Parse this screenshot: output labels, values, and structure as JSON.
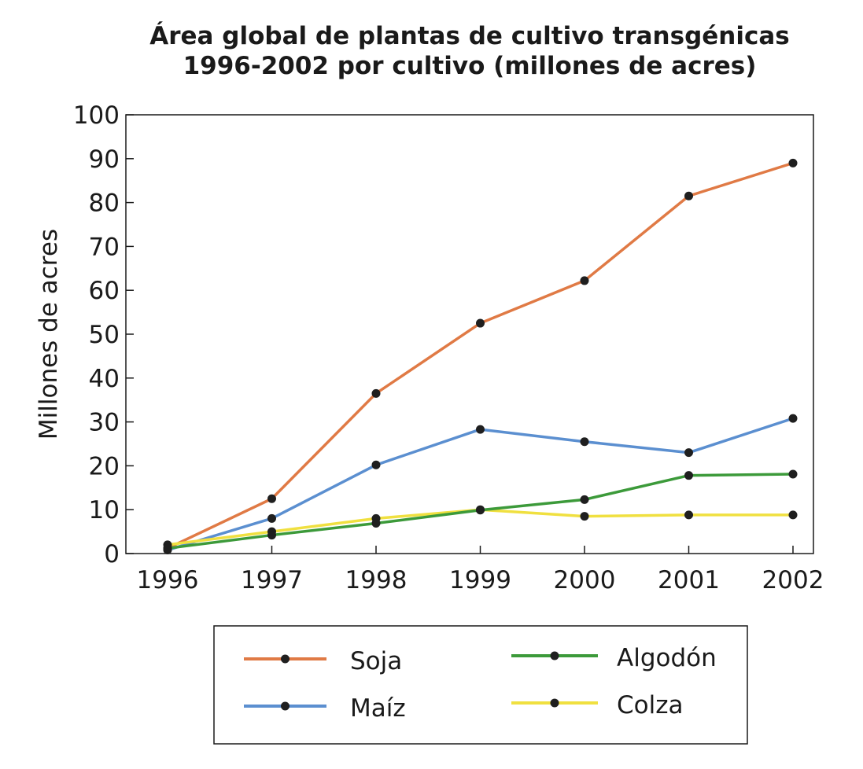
{
  "chart_data": {
    "type": "line",
    "title": "Área global de plantas de cultivo transgénicas",
    "subtitle": "1996-2002 por cultivo (millones de acres)",
    "xlabel": "",
    "ylabel": "Millones de acres",
    "x": [
      "1996",
      "1997",
      "1998",
      "1999",
      "2000",
      "2001",
      "2002"
    ],
    "ylim": [
      0,
      100
    ],
    "yticks": [
      0,
      10,
      20,
      30,
      40,
      50,
      60,
      70,
      80,
      90,
      100
    ],
    "grid": false,
    "legend_position": "bottom",
    "series": [
      {
        "name": "Soja",
        "color": "#e07a45",
        "values": [
          1.2,
          12.5,
          36.5,
          52.5,
          62.2,
          81.5,
          89.0
        ]
      },
      {
        "name": "Maíz",
        "color": "#5b8fd0",
        "values": [
          0.8,
          8.0,
          20.2,
          28.3,
          25.5,
          23.0,
          30.8
        ]
      },
      {
        "name": "Algodón",
        "color": "#3c9a3a",
        "values": [
          1.2,
          4.2,
          6.9,
          9.9,
          12.3,
          17.8,
          18.1
        ]
      },
      {
        "name": "Colza",
        "color": "#f0e040",
        "values": [
          2.0,
          5.0,
          8.0,
          10.0,
          8.5,
          8.8,
          8.8
        ]
      }
    ]
  }
}
